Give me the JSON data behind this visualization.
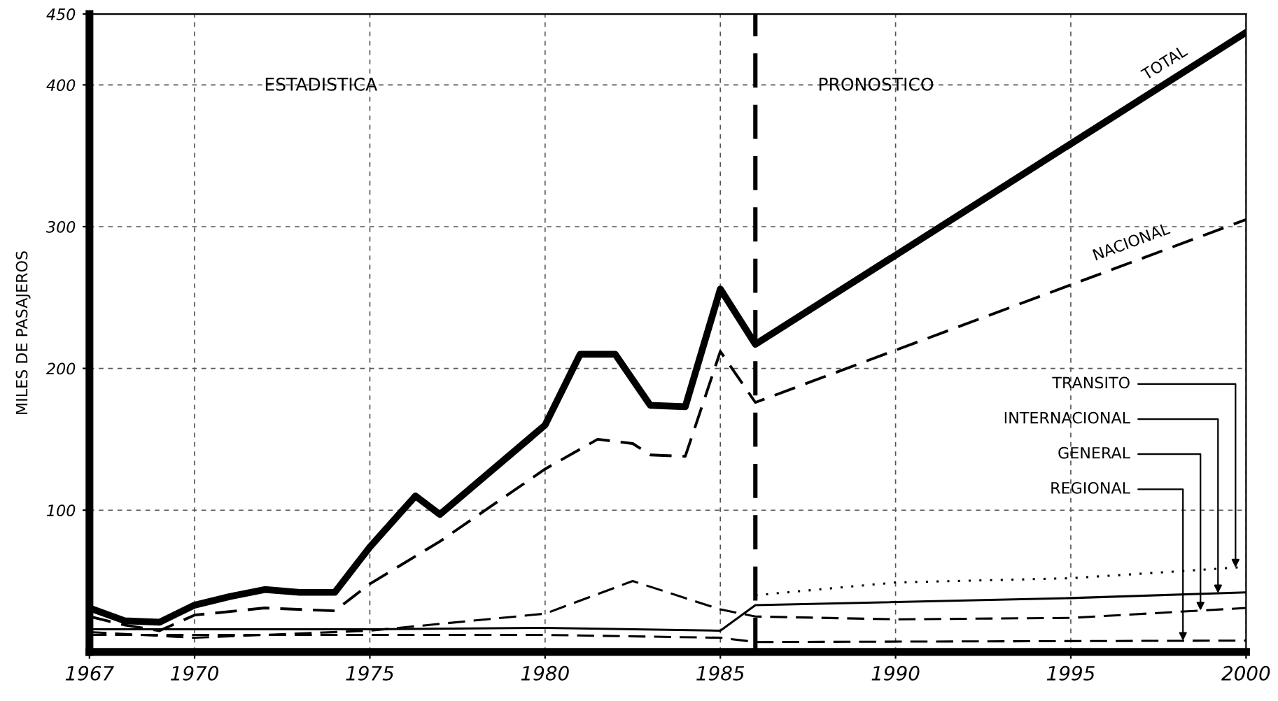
{
  "chart_data": {
    "type": "line",
    "ylabel": "MILES DE PASAJEROS",
    "xlim": [
      1967,
      2000
    ],
    "xticks": [
      1967,
      1970,
      1975,
      1980,
      1985,
      1990,
      1995,
      2000
    ],
    "ylim": [
      0,
      450
    ],
    "yticks": [
      100,
      200,
      300,
      400,
      450
    ],
    "grid": true,
    "legend": false,
    "ref_lines": [
      {
        "axis": "x",
        "value": 1986,
        "line_style": "dashed",
        "color": "#000000"
      }
    ],
    "annotations": [
      "ESTADISTICA",
      "PRONOSTICO"
    ],
    "series": [
      {
        "name": "TOTAL",
        "color": "#000000",
        "line_style": "solid",
        "x": [
          1967,
          1968,
          1969,
          1970,
          1971,
          1972,
          1973,
          1974,
          1975,
          1976.3,
          1977,
          1980,
          1981,
          1982,
          1983,
          1984,
          1985,
          1986,
          2000
        ],
        "values": [
          31,
          22,
          21,
          33,
          39,
          44,
          42,
          42,
          74,
          110,
          97,
          160,
          210,
          210,
          174,
          173,
          256,
          217,
          437
        ]
      },
      {
        "name": "NACIONAL",
        "color": "#000000",
        "line_style": "dashed",
        "x": [
          1967,
          1968,
          1969,
          1970,
          1972,
          1974,
          1975,
          1977,
          1980,
          1981.5,
          1982.5,
          1983,
          1984,
          1985,
          1986,
          2000
        ],
        "values": [
          25,
          19,
          15,
          26,
          31,
          29,
          48,
          78,
          129,
          150,
          147,
          139,
          138,
          212,
          176,
          305
        ]
      },
      {
        "name": "TRANSITO",
        "color": "#000000",
        "line_style": "dotted",
        "x": [
          1986,
          1990,
          1995,
          2000
        ],
        "values": [
          40,
          49,
          52,
          60
        ]
      },
      {
        "name": "INTERNACIONAL",
        "color": "#000000",
        "line_style": "solid",
        "x": [
          1967,
          1975,
          1980,
          1985,
          1986,
          1995,
          2000
        ],
        "values": [
          16,
          16,
          17,
          15,
          33,
          38,
          42
        ]
      },
      {
        "name": "GENERAL",
        "color": "#000000",
        "line_style": "dashed",
        "x": [
          1967,
          1970,
          1975,
          1980,
          1982.5,
          1985,
          1986,
          1990,
          1995,
          2000
        ],
        "values": [
          14,
          10,
          15,
          27,
          50,
          30,
          25,
          23,
          24,
          31
        ]
      },
      {
        "name": "REGIONAL",
        "color": "#000000",
        "line_style": "dashed",
        "x": [
          1967,
          1975,
          1980,
          1985,
          1986,
          2000
        ],
        "values": [
          12,
          12,
          12,
          10,
          7,
          8
        ]
      }
    ]
  }
}
